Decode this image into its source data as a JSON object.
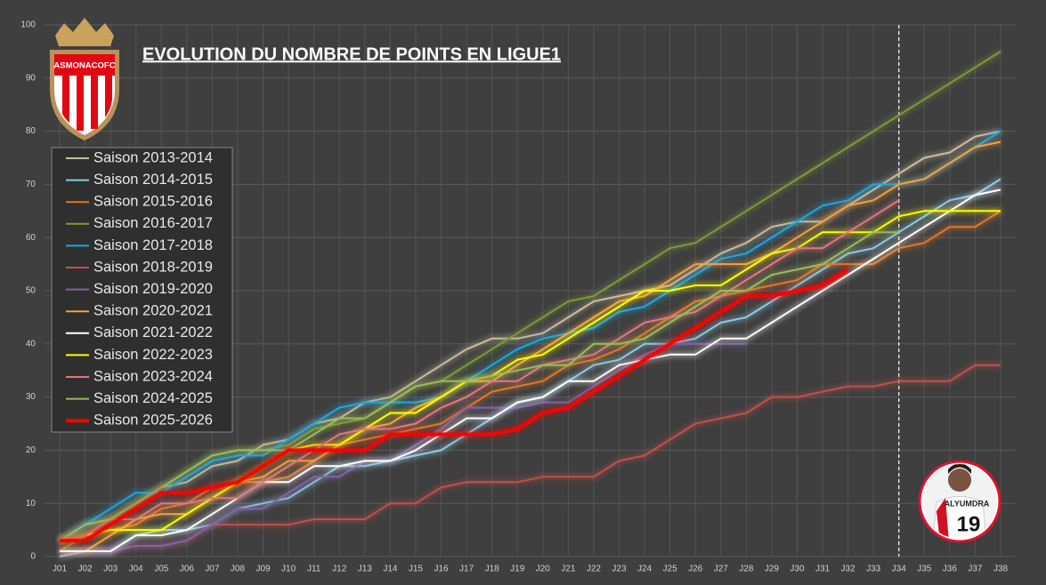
{
  "logo": {
    "text": "ASMONACOFC"
  },
  "avatar": {
    "name": "ALYUMDRA",
    "number": "19"
  },
  "chart_data": {
    "type": "line",
    "title": "EVOLUTION DU NOMBRE DE POINTS EN LIGUE1",
    "categories": [
      "J01",
      "J02",
      "J03",
      "J04",
      "J05",
      "J06",
      "J07",
      "J08",
      "J09",
      "J10",
      "J11",
      "J12",
      "J13",
      "J14",
      "J15",
      "J16",
      "J17",
      "J18",
      "J19",
      "J20",
      "J21",
      "J22",
      "J23",
      "J24",
      "J25",
      "J26",
      "J27",
      "J28",
      "J29",
      "J30",
      "J31",
      "J32",
      "J33",
      "J34",
      "J35",
      "J36",
      "J37",
      "J38"
    ],
    "ylim": [
      0,
      100
    ],
    "yticks": [
      0,
      10,
      20,
      30,
      40,
      50,
      60,
      70,
      80,
      90,
      100
    ],
    "grid": true,
    "legend": "upper left",
    "vline": "J34",
    "series": [
      {
        "name": "Saison 2013-2014",
        "color": "#cbbd9e",
        "values": [
          3,
          6,
          7,
          10,
          13,
          14,
          17,
          18,
          21,
          22,
          25,
          26,
          29,
          30,
          33,
          36,
          39,
          41,
          41,
          42,
          45,
          48,
          49,
          50,
          51,
          54,
          57,
          59,
          62,
          63,
          63,
          66,
          69,
          72,
          75,
          76,
          79,
          80
        ]
      },
      {
        "name": "Saison 2014-2015",
        "color": "#8ecae6",
        "values": [
          0,
          1,
          1,
          4,
          5,
          5,
          6,
          9,
          10,
          11,
          14,
          17,
          17,
          18,
          19,
          20,
          23,
          26,
          29,
          30,
          33,
          36,
          37,
          40,
          40,
          41,
          44,
          45,
          48,
          51,
          54,
          57,
          58,
          61,
          64,
          67,
          68,
          71
        ]
      },
      {
        "name": "Saison 2015-2016",
        "color": "#e0782a",
        "values": [
          3,
          4,
          5,
          6,
          9,
          10,
          13,
          14,
          14,
          15,
          18,
          21,
          22,
          23,
          24,
          25,
          28,
          31,
          32,
          33,
          36,
          37,
          39,
          42,
          45,
          48,
          49,
          50,
          51,
          52,
          55,
          55,
          55,
          58,
          59,
          62,
          62,
          65
        ]
      },
      {
        "name": "Saison 2016-2017",
        "color": "#7d9a3c",
        "values": [
          1,
          4,
          7,
          10,
          13,
          16,
          19,
          20,
          20,
          21,
          24,
          25,
          26,
          29,
          32,
          33,
          36,
          39,
          42,
          45,
          48,
          49,
          52,
          55,
          58,
          59,
          62,
          65,
          68,
          71,
          74,
          77,
          80,
          83,
          86,
          89,
          92,
          95
        ]
      },
      {
        "name": "Saison 2017-2018",
        "color": "#1ea7e0",
        "values": [
          3,
          6,
          9,
          12,
          12,
          15,
          18,
          19,
          19,
          22,
          25,
          28,
          29,
          29,
          29,
          30,
          33,
          36,
          39,
          41,
          42,
          43,
          46,
          47,
          50,
          53,
          56,
          57,
          60,
          63,
          66,
          67,
          70,
          70,
          71,
          74,
          77,
          80
        ]
      },
      {
        "name": "Saison 2018-2019",
        "color": "#c0504d",
        "values": [
          1,
          1,
          1,
          2,
          2,
          3,
          6,
          6,
          6,
          6,
          7,
          7,
          7,
          10,
          10,
          13,
          14,
          14,
          14,
          15,
          15,
          15,
          18,
          19,
          22,
          25,
          26,
          27,
          30,
          30,
          31,
          32,
          32,
          33,
          33,
          33,
          36,
          36
        ]
      },
      {
        "name": "Saison 2019-2020",
        "color": "#8064a2",
        "values": [
          1,
          1,
          1,
          2,
          2,
          3,
          6,
          9,
          9,
          12,
          15,
          15,
          18,
          18,
          21,
          24,
          28,
          28,
          28,
          29,
          29,
          32,
          35,
          38,
          40,
          40,
          40,
          40,
          null,
          null,
          null,
          null,
          null,
          null,
          null,
          null,
          null,
          null
        ]
      },
      {
        "name": "Saison 2020-2021",
        "color": "#f4a040",
        "values": [
          1,
          1,
          4,
          7,
          8,
          8,
          11,
          14,
          15,
          18,
          18,
          21,
          24,
          25,
          28,
          30,
          33,
          33,
          36,
          39,
          42,
          45,
          48,
          49,
          52,
          55,
          55,
          55,
          57,
          60,
          63,
          66,
          67,
          70,
          71,
          74,
          77,
          78
        ]
      },
      {
        "name": "Saison 2021-2022",
        "color": "#ffffff",
        "values": [
          1,
          1,
          1,
          4,
          4,
          5,
          8,
          11,
          14,
          14,
          17,
          17,
          18,
          18,
          20,
          23,
          26,
          26,
          29,
          30,
          33,
          33,
          36,
          37,
          38,
          38,
          41,
          41,
          44,
          47,
          50,
          53,
          56,
          59,
          62,
          65,
          68,
          69
        ]
      },
      {
        "name": "Saison 2022-2023",
        "color": "#ffff00",
        "values": [
          3,
          4,
          5,
          5,
          5,
          8,
          11,
          14,
          17,
          20,
          21,
          21,
          24,
          27,
          27,
          30,
          33,
          34,
          37,
          38,
          41,
          44,
          47,
          50,
          50,
          51,
          51,
          54,
          57,
          58,
          61,
          61,
          61,
          64,
          65,
          65,
          65,
          65
        ]
      },
      {
        "name": "Saison 2023-2024",
        "color": "#e07a7a",
        "values": [
          3,
          4,
          7,
          7,
          10,
          10,
          11,
          11,
          14,
          17,
          20,
          23,
          24,
          24,
          25,
          28,
          30,
          33,
          33,
          36,
          37,
          38,
          41,
          44,
          45,
          46,
          49,
          52,
          55,
          58,
          58,
          61,
          64,
          67,
          null,
          null,
          null,
          null
        ]
      },
      {
        "name": "Saison 2024-2025",
        "color": "#9bbb59",
        "values": [
          3,
          6,
          7,
          10,
          13,
          16,
          19,
          20,
          20,
          20,
          23,
          26,
          26,
          29,
          32,
          33,
          33,
          34,
          35,
          36,
          36,
          40,
          40,
          41,
          44,
          47,
          50,
          50,
          53,
          54,
          55,
          58,
          61,
          61,
          null,
          null,
          null,
          null
        ]
      },
      {
        "name": "Saison 2025-2026",
        "color": "#ff0000",
        "width": 4,
        "values": [
          3,
          3,
          6,
          9,
          12,
          12,
          13,
          14,
          17,
          20,
          20,
          20,
          20,
          23,
          23,
          23,
          23,
          23,
          24,
          27,
          28,
          31,
          34,
          37,
          40,
          43,
          46,
          49,
          49,
          50,
          51,
          54,
          null,
          null,
          null,
          null,
          null,
          null
        ]
      }
    ]
  }
}
